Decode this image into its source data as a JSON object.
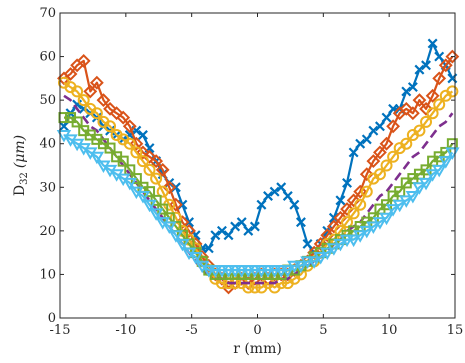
{
  "chart_data": {
    "type": "line",
    "title": "",
    "xlabel": "r (mm)",
    "ylabel_main": "D",
    "ylabel_sub": "32",
    "ylabel_unit": "(μm)",
    "xlim": [
      -15,
      15
    ],
    "ylim": [
      0,
      70
    ],
    "xticks": [
      -15,
      -10,
      -5,
      0,
      5,
      10,
      15
    ],
    "yticks": [
      0,
      10,
      20,
      30,
      40,
      50,
      60,
      70
    ],
    "grid": false,
    "legend": "none",
    "series": [
      {
        "marker": "x",
        "color": "#0072BD",
        "dash": "solid",
        "x": [
          -14.7,
          -14.2,
          -13.7,
          -13.2,
          -12.7,
          -12.2,
          -11.7,
          -11.2,
          -10.7,
          -10.2,
          -9.7,
          -9.2,
          -8.7,
          -8.2,
          -7.7,
          -7.2,
          -6.7,
          -6.2,
          -5.7,
          -5.2,
          -4.7,
          -4.2,
          -3.7,
          -3.2,
          -2.7,
          -2.2,
          -1.7,
          -1.2,
          -0.7,
          -0.2,
          0.3,
          0.8,
          1.3,
          1.8,
          2.3,
          2.8,
          3.3,
          3.8,
          4.3,
          4.8,
          5.3,
          5.8,
          6.3,
          6.8,
          7.3,
          7.8,
          8.3,
          8.8,
          9.3,
          9.8,
          10.3,
          10.8,
          11.3,
          11.8,
          12.3,
          12.8,
          13.3,
          13.8,
          14.3,
          14.8
        ],
        "y": [
          44,
          47,
          49,
          48,
          47,
          46,
          44,
          43,
          42,
          41,
          42,
          43,
          42,
          39,
          36,
          33,
          31,
          30,
          26,
          22,
          19,
          16,
          16,
          19,
          20,
          19,
          21,
          22,
          20,
          21,
          26,
          28,
          29,
          30,
          28,
          26,
          22,
          17,
          15,
          17,
          20,
          23,
          27,
          31,
          38,
          40,
          41,
          43,
          44,
          46,
          48,
          48,
          52,
          53,
          57,
          58,
          63,
          60,
          58,
          55
        ]
      },
      {
        "marker": "diamond",
        "color": "#D95319",
        "dash": "solid",
        "x": [
          -14.7,
          -14.2,
          -13.7,
          -13.2,
          -12.7,
          -12.2,
          -11.7,
          -11.2,
          -10.7,
          -10.2,
          -9.7,
          -9.2,
          -8.7,
          -8.2,
          -7.7,
          -7.2,
          -6.7,
          -6.2,
          -5.7,
          -5.2,
          -4.7,
          -4.2,
          -3.7,
          -3.2,
          -2.7,
          -2.2,
          -1.7,
          -1.2,
          -0.7,
          -0.2,
          0.3,
          0.8,
          1.3,
          1.8,
          2.3,
          2.8,
          3.3,
          3.8,
          4.3,
          4.8,
          5.3,
          5.8,
          6.3,
          6.8,
          7.3,
          7.8,
          8.3,
          8.8,
          9.3,
          9.8,
          10.3,
          10.8,
          11.3,
          11.8,
          12.3,
          12.8,
          13.3,
          13.8,
          14.3,
          14.8
        ],
        "y": [
          55,
          56,
          58,
          59,
          52,
          54,
          50,
          48,
          47,
          46,
          44,
          40,
          38,
          37,
          36,
          34,
          30,
          26,
          22,
          20,
          17,
          14,
          12,
          10,
          9,
          7,
          8,
          9,
          8,
          9,
          10,
          9,
          10,
          10,
          10,
          11,
          12,
          13,
          15,
          17,
          19,
          21,
          23,
          25,
          27,
          29,
          33,
          36,
          38,
          40,
          44,
          47,
          48,
          47,
          50,
          48,
          51,
          55,
          58,
          60
        ]
      },
      {
        "marker": "circle",
        "color": "#EDB120",
        "dash": "solid",
        "x": [
          -14.7,
          -14.2,
          -13.7,
          -13.2,
          -12.7,
          -12.2,
          -11.7,
          -11.2,
          -10.7,
          -10.2,
          -9.7,
          -9.2,
          -8.7,
          -8.2,
          -7.7,
          -7.2,
          -6.7,
          -6.2,
          -5.7,
          -5.2,
          -4.7,
          -4.2,
          -3.7,
          -3.2,
          -2.7,
          -2.2,
          -1.7,
          -1.2,
          -0.7,
          -0.2,
          0.3,
          0.8,
          1.3,
          1.8,
          2.3,
          2.8,
          3.3,
          3.8,
          4.3,
          4.8,
          5.3,
          5.8,
          6.3,
          6.8,
          7.3,
          7.8,
          8.3,
          8.8,
          9.3,
          9.8,
          10.3,
          10.8,
          11.3,
          11.8,
          12.3,
          12.8,
          13.3,
          13.8,
          14.3,
          14.8
        ],
        "y": [
          54,
          53,
          52,
          50,
          48,
          47,
          45,
          44,
          42,
          41,
          40,
          38,
          36,
          34,
          32,
          29,
          26,
          23,
          20,
          18,
          16,
          13,
          11,
          9,
          8,
          8,
          8,
          8,
          7,
          7,
          7,
          8,
          7,
          8,
          8,
          9,
          10,
          12,
          13,
          15,
          17,
          18,
          20,
          22,
          24,
          26,
          29,
          32,
          33,
          35,
          37,
          39,
          40,
          42,
          43,
          45,
          47,
          49,
          51,
          52
        ]
      },
      {
        "marker": "none",
        "color": "#7E2F8E",
        "dash": "dashed",
        "x": [
          -14.7,
          -14.2,
          -13.7,
          -13.2,
          -12.7,
          -12.2,
          -11.7,
          -11.2,
          -10.7,
          -10.2,
          -9.7,
          -9.2,
          -8.7,
          -8.2,
          -7.7,
          -7.2,
          -6.7,
          -6.2,
          -5.7,
          -5.2,
          -4.7,
          -4.2,
          -3.7,
          -3.2,
          -2.7,
          -2.2,
          -1.7,
          -1.2,
          -0.7,
          -0.2,
          0.3,
          0.8,
          1.3,
          1.8,
          2.3,
          2.8,
          3.3,
          3.8,
          4.3,
          4.8,
          5.3,
          5.8,
          6.3,
          6.8,
          7.3,
          7.8,
          8.3,
          8.8,
          9.3,
          9.8,
          10.3,
          10.8,
          11.3,
          11.8,
          12.3,
          12.8,
          13.3,
          13.8,
          14.3,
          14.8
        ],
        "y": [
          51,
          50,
          48,
          46,
          44,
          43,
          41,
          39,
          37,
          35,
          33,
          31,
          29,
          27,
          25,
          23,
          21,
          19,
          17,
          15,
          13,
          11,
          10,
          9,
          9,
          8,
          8,
          8,
          8,
          8,
          8,
          8,
          8,
          9,
          9,
          10,
          11,
          12,
          13,
          14,
          15,
          17,
          18,
          20,
          21,
          22,
          24,
          26,
          28,
          29,
          31,
          33,
          35,
          37,
          38,
          40,
          42,
          44,
          45,
          47
        ]
      },
      {
        "marker": "square",
        "color": "#77AC30",
        "dash": "solid",
        "x": [
          -14.7,
          -14.2,
          -13.7,
          -13.2,
          -12.7,
          -12.2,
          -11.7,
          -11.2,
          -10.7,
          -10.2,
          -9.7,
          -9.2,
          -8.7,
          -8.2,
          -7.7,
          -7.2,
          -6.7,
          -6.2,
          -5.7,
          -5.2,
          -4.7,
          -4.2,
          -3.7,
          -3.2,
          -2.7,
          -2.2,
          -1.7,
          -1.2,
          -0.7,
          -0.2,
          0.3,
          0.8,
          1.3,
          1.8,
          2.3,
          2.8,
          3.3,
          3.8,
          4.3,
          4.8,
          5.3,
          5.8,
          6.3,
          6.8,
          7.3,
          7.8,
          8.3,
          8.8,
          9.3,
          9.8,
          10.3,
          10.8,
          11.3,
          11.8,
          12.3,
          12.8,
          13.3,
          13.8,
          14.3,
          14.8
        ],
        "y": [
          46,
          46,
          45,
          43,
          42,
          41,
          40,
          39,
          37,
          36,
          34,
          32,
          30,
          29,
          27,
          25,
          23,
          21,
          19,
          17,
          15,
          13,
          11,
          10,
          10,
          10,
          10,
          10,
          10,
          10,
          10,
          10,
          10,
          10,
          11,
          11,
          12,
          13,
          14,
          15,
          16,
          17,
          18,
          19,
          20,
          21,
          22,
          23,
          25,
          26,
          28,
          29,
          31,
          32,
          33,
          34,
          36,
          37,
          38,
          40
        ]
      },
      {
        "marker": "triangle-down",
        "color": "#4DBEEE",
        "dash": "solid",
        "x": [
          -14.7,
          -14.2,
          -13.7,
          -13.2,
          -12.7,
          -12.2,
          -11.7,
          -11.2,
          -10.7,
          -10.2,
          -9.7,
          -9.2,
          -8.7,
          -8.2,
          -7.7,
          -7.2,
          -6.7,
          -6.2,
          -5.7,
          -5.2,
          -4.7,
          -4.2,
          -3.7,
          -3.2,
          -2.7,
          -2.2,
          -1.7,
          -1.2,
          -0.7,
          -0.2,
          0.3,
          0.8,
          1.3,
          1.8,
          2.3,
          2.8,
          3.3,
          3.8,
          4.3,
          4.8,
          5.3,
          5.8,
          6.3,
          6.8,
          7.3,
          7.8,
          8.3,
          8.8,
          9.3,
          9.8,
          10.3,
          10.8,
          11.3,
          11.8,
          12.3,
          12.8,
          13.3,
          13.8,
          14.3,
          14.8
        ],
        "y": [
          42,
          41,
          40,
          39,
          38,
          37,
          35,
          34,
          33,
          32,
          31,
          29,
          28,
          26,
          24,
          22,
          21,
          19,
          17,
          15,
          14,
          12,
          11,
          11,
          11,
          11,
          11,
          11,
          11,
          11,
          11,
          11,
          11,
          11,
          11,
          12,
          12,
          13,
          13,
          14,
          15,
          16,
          17,
          18,
          18,
          19,
          20,
          21,
          22,
          23,
          25,
          26,
          27,
          28,
          30,
          31,
          33,
          34,
          36,
          38
        ]
      }
    ]
  }
}
